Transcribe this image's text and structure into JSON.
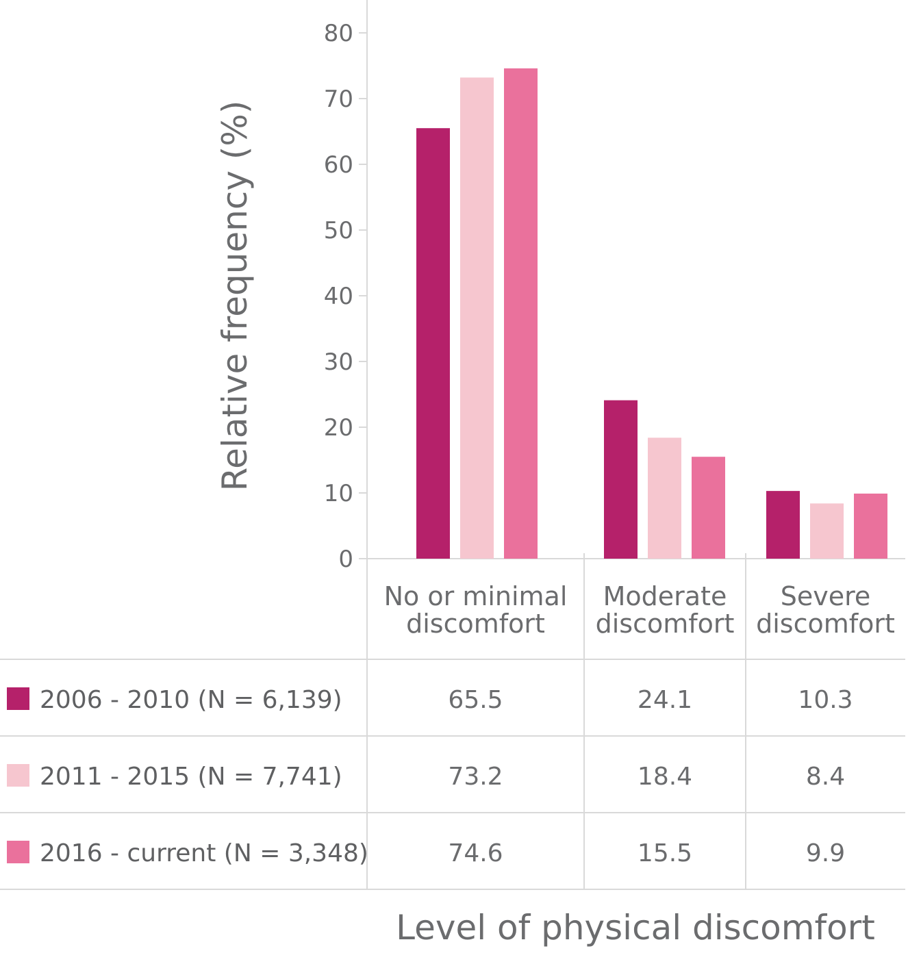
{
  "chart_data": {
    "type": "bar",
    "title": "",
    "xlabel": "Level of physical discomfort",
    "ylabel": "Relative frequency (%)",
    "ylim": [
      0,
      80
    ],
    "yticks": [
      "0",
      "10",
      "20",
      "30",
      "40",
      "50",
      "60",
      "70",
      "80"
    ],
    "categories": [
      {
        "line1": "No or minimal",
        "line2": "discomfort"
      },
      {
        "line1": "Moderate",
        "line2": "discomfort"
      },
      {
        "line1": "Severe",
        "line2": "discomfort"
      }
    ],
    "series": [
      {
        "name": "2006 - 2010 (N = 6,139)",
        "color": "#b5216a",
        "values": [
          65.5,
          24.1,
          10.3
        ],
        "labels": [
          "65.5",
          "24.1",
          "10.3"
        ]
      },
      {
        "name": "2011 - 2015 (N = 7,741)",
        "color": "#f6c6cf",
        "values": [
          73.2,
          18.4,
          8.4
        ],
        "labels": [
          "73.2",
          "18.4",
          "8.4"
        ]
      },
      {
        "name": "2016 - current (N = 3,348)",
        "color": "#ea719c",
        "values": [
          74.6,
          15.5,
          9.9
        ],
        "labels": [
          "74.6",
          "15.5",
          "9.9"
        ]
      }
    ],
    "grid": false,
    "legend": "table-left"
  }
}
